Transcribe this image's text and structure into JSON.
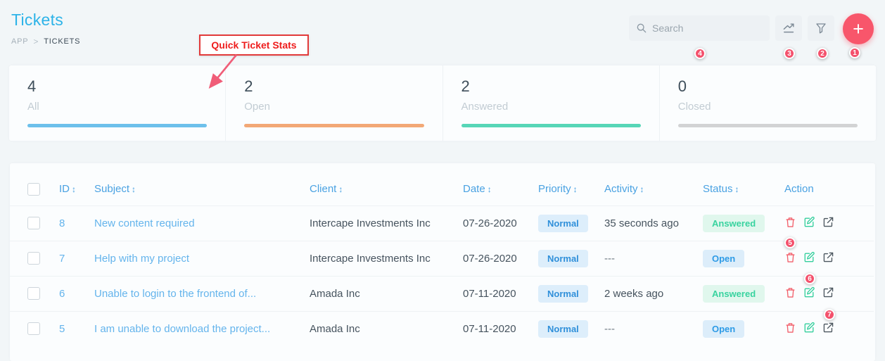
{
  "header": {
    "title": "Tickets",
    "breadcrumb_root": "APP",
    "breadcrumb_separator": ">",
    "breadcrumb_current": "TICKETS"
  },
  "toolbar": {
    "search_placeholder": "Search",
    "add_button_label": "+"
  },
  "annotation": {
    "callout_label": "Quick Ticket Stats",
    "badges": [
      "1",
      "2",
      "3",
      "4",
      "5",
      "6",
      "7"
    ]
  },
  "stats": {
    "items": [
      {
        "value": "4",
        "label": "All",
        "bar_color": "#6dc0eb"
      },
      {
        "value": "2",
        "label": "Open",
        "bar_color": "#f2a876"
      },
      {
        "value": "2",
        "label": "Answered",
        "bar_color": "#57d6b7"
      },
      {
        "value": "0",
        "label": "Closed",
        "bar_color": "#d2d3d4"
      }
    ]
  },
  "table": {
    "headers": [
      {
        "label": "ID",
        "sortable": true
      },
      {
        "label": "Subject",
        "sortable": true
      },
      {
        "label": "Client",
        "sortable": true
      },
      {
        "label": "Date",
        "sortable": true
      },
      {
        "label": "Priority",
        "sortable": true
      },
      {
        "label": "Activity",
        "sortable": true
      },
      {
        "label": "Status",
        "sortable": true
      },
      {
        "label": "Action",
        "sortable": false
      }
    ],
    "rows": [
      {
        "id": "8",
        "subject": "New content required",
        "client": "Intercape Investments Inc",
        "date": "07-26-2020",
        "priority": "Normal",
        "activity": "35 seconds ago",
        "status": "Answered"
      },
      {
        "id": "7",
        "subject": "Help with my project",
        "client": "Intercape Investments Inc",
        "date": "07-26-2020",
        "priority": "Normal",
        "activity": "---",
        "status": "Open"
      },
      {
        "id": "6",
        "subject": "Unable to login to the frontend of...",
        "client": "Amada Inc",
        "date": "07-11-2020",
        "priority": "Normal",
        "activity": "2 weeks ago",
        "status": "Answered"
      },
      {
        "id": "5",
        "subject": "I am unable to download the project...",
        "client": "Amada Inc",
        "date": "07-11-2020",
        "priority": "Normal",
        "activity": "---",
        "status": "Open"
      }
    ],
    "priority_colors": {
      "bg": "#ddeefb",
      "text": "#3090da"
    },
    "status_colors": {
      "Answered": {
        "bg": "#e0f7ed",
        "text": "#38d39f"
      },
      "Open": {
        "bg": "#dcedfa",
        "text": "#2e9be6"
      }
    }
  }
}
